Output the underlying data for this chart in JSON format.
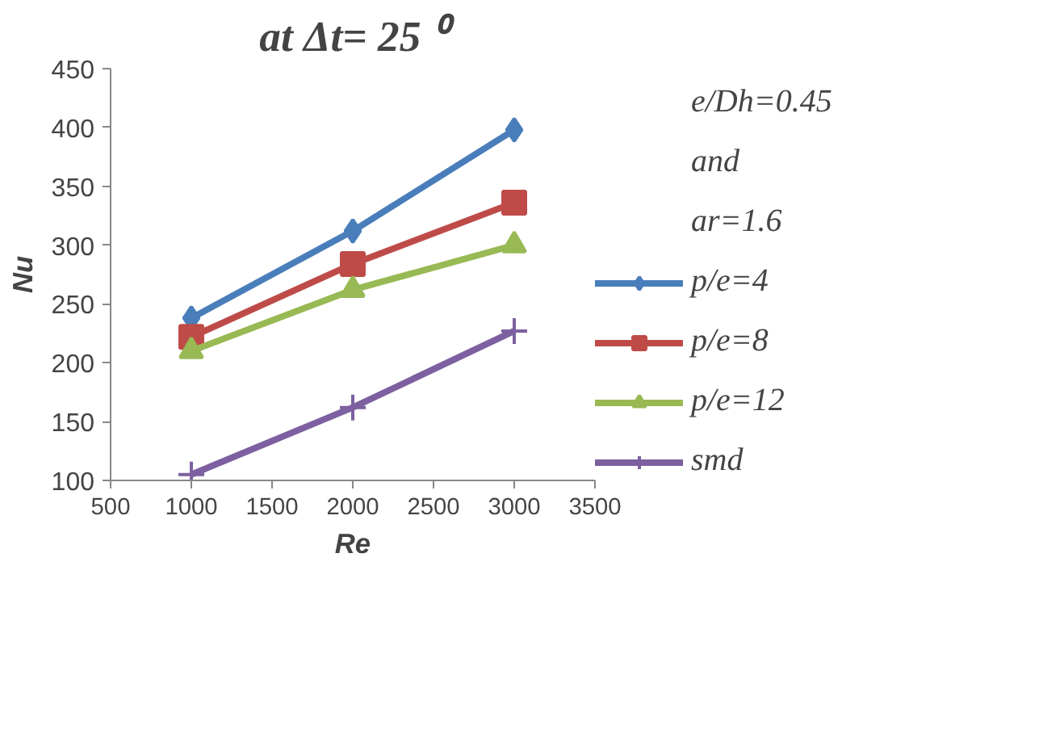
{
  "chart_data": {
    "type": "line",
    "title": "at Δt= 25 ⁰",
    "xlabel": "Re",
    "ylabel": "Nu",
    "x": [
      1000,
      2000,
      3000
    ],
    "series": [
      {
        "name": "p/e=4",
        "color": "#4a7ebb",
        "marker": "diamond",
        "values": [
          238,
          312,
          398
        ]
      },
      {
        "name": "p/e=8",
        "color": "#be4b48",
        "marker": "square",
        "values": [
          222,
          284,
          336
        ]
      },
      {
        "name": "p/e=12",
        "color": "#98b954",
        "marker": "triangle",
        "values": [
          210,
          262,
          300
        ]
      },
      {
        "name": "smd",
        "color": "#7d60a0",
        "marker": "cross",
        "values": [
          105,
          162,
          227
        ]
      }
    ],
    "xlim": [
      500,
      3500
    ],
    "xticks": [
      500,
      1000,
      1500,
      2000,
      2500,
      3000,
      3500
    ],
    "ylim": [
      100,
      450
    ],
    "yticks": [
      100,
      150,
      200,
      250,
      300,
      350,
      400,
      450
    ],
    "grid": false,
    "legend": "right",
    "annotations": [
      "e/Dh=0.45",
      "and",
      "ar=1.6"
    ]
  }
}
